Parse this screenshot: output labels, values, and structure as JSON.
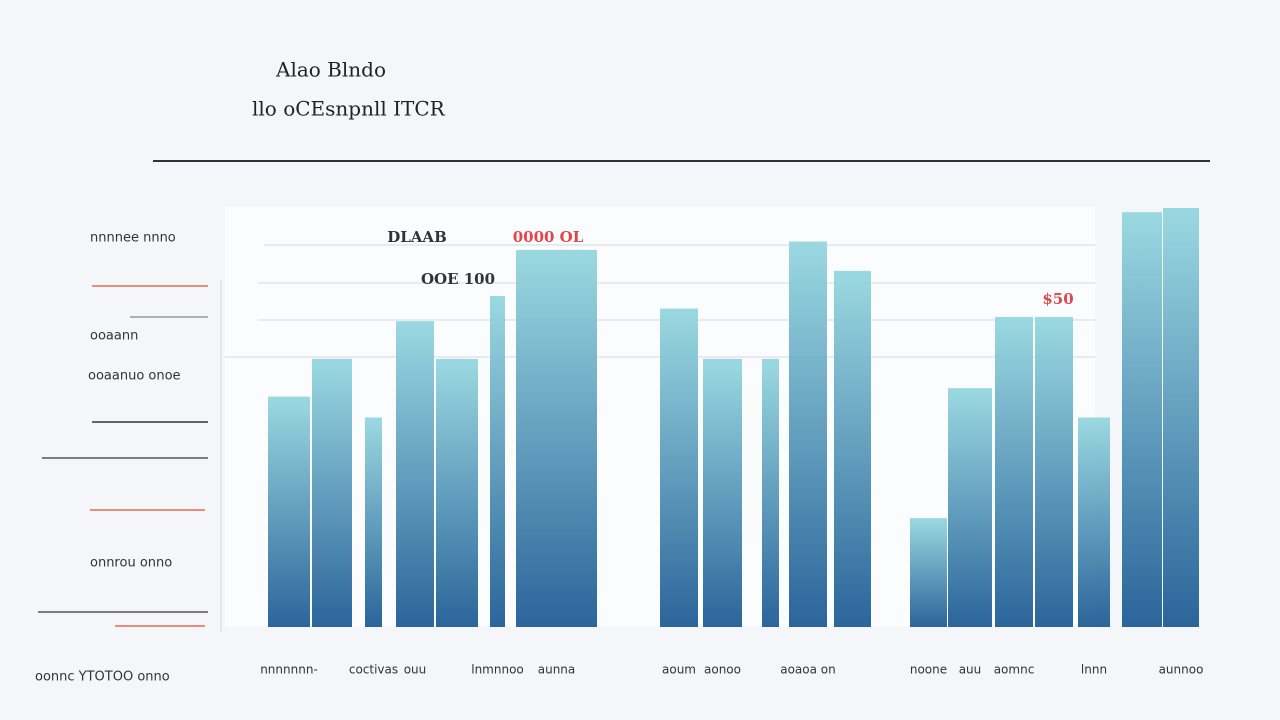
{
  "chart_data": {
    "type": "bar",
    "title": "Alao Blndo",
    "subtitle": "llo oCEsnpnll ITCR",
    "categories": [
      "nnnnnnn-",
      null,
      "coctivas",
      "ouu",
      null,
      "lnmnnoo",
      "aunna",
      "aoum",
      "aonoo",
      null,
      "aoaoa on",
      null,
      "noone",
      "auu",
      "aomnc",
      null,
      "lnnn",
      null,
      "aunnoo"
    ],
    "values": [
      55,
      64,
      50,
      73,
      64,
      79,
      90,
      76,
      64,
      64,
      92,
      85,
      26,
      57,
      74,
      74,
      50,
      99,
      100
    ],
    "ylim": [
      0,
      100
    ],
    "color_top": "#93d6df",
    "color_bottom": "#195892",
    "annotations": [
      "DLAAB",
      "0000 OL",
      "OOE 100",
      "$50"
    ],
    "side_labels": [
      "nnnnee nnno",
      "ooaann",
      "ooaanuo onoe",
      "onnrou onno",
      "oonnc YTOTOO onno"
    ]
  }
}
